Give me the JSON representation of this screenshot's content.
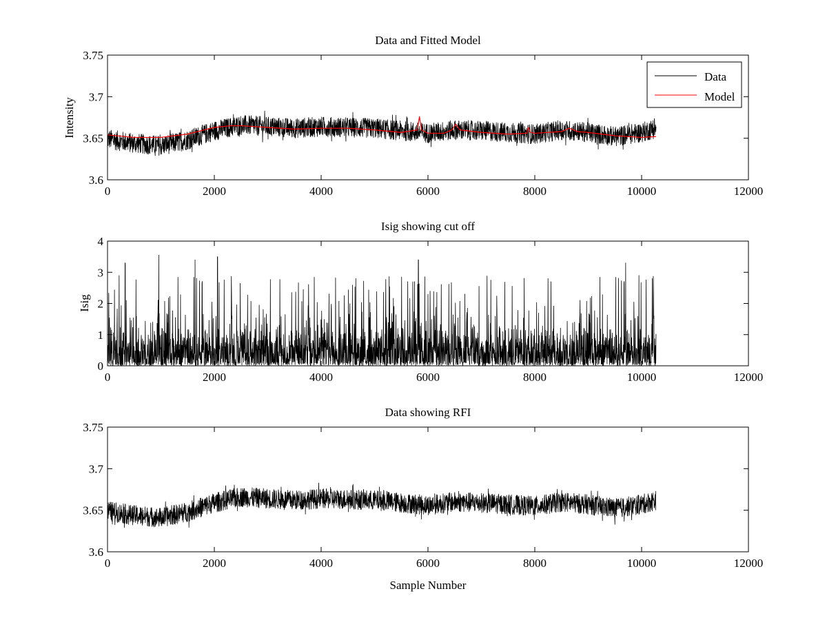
{
  "chart_data": [
    {
      "type": "line",
      "title": "Data and Fitted Model",
      "xlabel": "",
      "ylabel": "Intensity",
      "xlim": [
        0,
        12000
      ],
      "ylim": [
        3.6,
        3.75
      ],
      "xticks": [
        "0",
        "2000",
        "4000",
        "6000",
        "8000",
        "10000",
        "12000"
      ],
      "yticks": [
        "3.6",
        "3.65",
        "3.7",
        "3.75"
      ],
      "legend": {
        "placement": "top-right",
        "entries": [
          "Data",
          "Model"
        ]
      },
      "series": [
        {
          "name": "Data",
          "color": "#000000",
          "style": "dense noisy trace",
          "x_range": [
            0,
            10270
          ],
          "baseline": [
            [
              0,
              3.649
            ],
            [
              500,
              3.644
            ],
            [
              1000,
              3.641
            ],
            [
              1500,
              3.648
            ],
            [
              2000,
              3.659
            ],
            [
              2500,
              3.666
            ],
            [
              3000,
              3.664
            ],
            [
              3500,
              3.662
            ],
            [
              4000,
              3.664
            ],
            [
              4500,
              3.663
            ],
            [
              5000,
              3.662
            ],
            [
              5500,
              3.659
            ],
            [
              6000,
              3.656
            ],
            [
              6500,
              3.66
            ],
            [
              7000,
              3.659
            ],
            [
              7500,
              3.657
            ],
            [
              8000,
              3.655
            ],
            [
              8500,
              3.66
            ],
            [
              9000,
              3.657
            ],
            [
              9500,
              3.652
            ],
            [
              10000,
              3.657
            ],
            [
              10270,
              3.662
            ]
          ],
          "noise_amplitude": 0.012
        },
        {
          "name": "Model",
          "color": "#ff0000",
          "x": [
            0,
            500,
            1000,
            1500,
            2000,
            2300,
            2500,
            3000,
            3500,
            4000,
            4500,
            5000,
            5500,
            5800,
            5840,
            5880,
            6000,
            6150,
            6300,
            6450,
            6520,
            6600,
            7000,
            7500,
            7850,
            7880,
            7920,
            8000,
            8500,
            8650,
            8800,
            9000,
            9500,
            10000,
            10270
          ],
          "y": [
            3.654,
            3.651,
            3.651,
            3.655,
            3.663,
            3.665,
            3.665,
            3.663,
            3.661,
            3.662,
            3.662,
            3.66,
            3.657,
            3.66,
            3.676,
            3.66,
            3.656,
            3.656,
            3.656,
            3.66,
            3.667,
            3.66,
            3.657,
            3.655,
            3.656,
            3.663,
            3.657,
            3.656,
            3.658,
            3.662,
            3.658,
            3.657,
            3.653,
            3.651,
            3.652
          ]
        }
      ]
    },
    {
      "type": "line",
      "title": "Isig showing cut off",
      "xlabel": "",
      "ylabel": "Isig",
      "xlim": [
        0,
        12000
      ],
      "ylim": [
        0,
        4
      ],
      "xticks": [
        "0",
        "2000",
        "4000",
        "6000",
        "8000",
        "10000",
        "12000"
      ],
      "yticks": [
        "0",
        "1",
        "2",
        "3",
        "4"
      ],
      "series": [
        {
          "color": "#000000",
          "style": "dense non-negative noise",
          "x_range": [
            0,
            10270
          ],
          "typical_level": 0.8,
          "max": 3.55,
          "peaks": [
            [
              330,
              3.3
            ],
            [
              960,
              3.55
            ],
            [
              1640,
              3.4
            ],
            [
              2060,
              3.5
            ],
            [
              5820,
              3.4
            ],
            [
              9700,
              3.3
            ],
            [
              9950,
              2.9
            ],
            [
              10200,
              2.8
            ]
          ]
        }
      ]
    },
    {
      "type": "line",
      "title": "Data showing RFI",
      "xlabel": "Sample Number",
      "ylabel": "",
      "xlim": [
        0,
        12000
      ],
      "ylim": [
        3.6,
        3.75
      ],
      "xticks": [
        "0",
        "2000",
        "4000",
        "6000",
        "8000",
        "10000",
        "12000"
      ],
      "yticks": [
        "3.6",
        "3.65",
        "3.7",
        "3.75"
      ],
      "series": [
        {
          "color": "#000000",
          "style": "dense noisy trace",
          "x_range": [
            0,
            10270
          ],
          "baseline": [
            [
              0,
              3.649
            ],
            [
              500,
              3.644
            ],
            [
              1000,
              3.641
            ],
            [
              1500,
              3.648
            ],
            [
              2000,
              3.659
            ],
            [
              2500,
              3.666
            ],
            [
              3000,
              3.664
            ],
            [
              3500,
              3.662
            ],
            [
              4000,
              3.664
            ],
            [
              4500,
              3.663
            ],
            [
              5000,
              3.662
            ],
            [
              5500,
              3.659
            ],
            [
              6000,
              3.656
            ],
            [
              6500,
              3.66
            ],
            [
              7000,
              3.659
            ],
            [
              7500,
              3.657
            ],
            [
              8000,
              3.655
            ],
            [
              8500,
              3.66
            ],
            [
              9000,
              3.657
            ],
            [
              9500,
              3.652
            ],
            [
              10000,
              3.657
            ],
            [
              10270,
              3.662
            ]
          ],
          "noise_amplitude": 0.012
        }
      ]
    }
  ]
}
